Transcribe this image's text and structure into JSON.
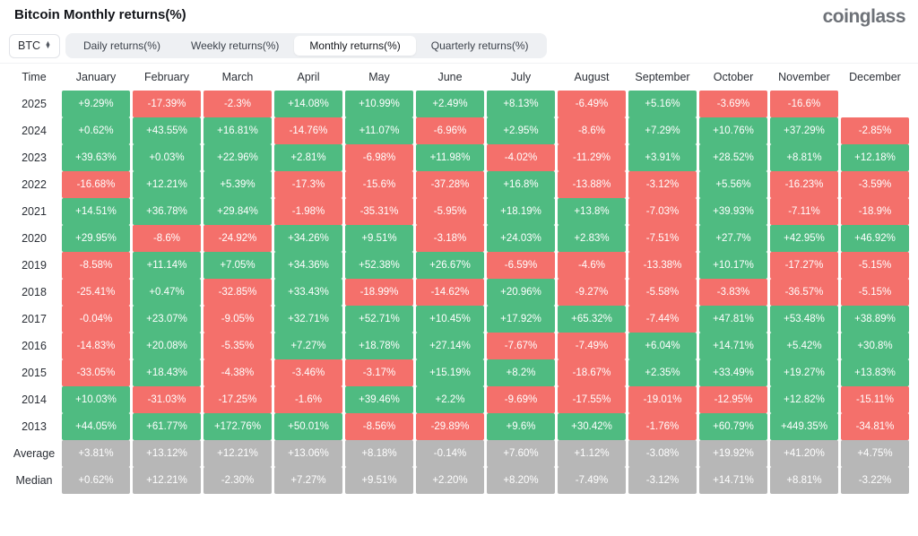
{
  "header": {
    "title": "Bitcoin Monthly returns(%)",
    "logo": "coinglass"
  },
  "controls": {
    "asset_selector": {
      "label": "BTC",
      "icon": "sort-arrows-icon"
    },
    "tabs": [
      {
        "label": "Daily returns(%)",
        "active": false
      },
      {
        "label": "Weekly returns(%)",
        "active": false
      },
      {
        "label": "Monthly returns(%)",
        "active": true
      },
      {
        "label": "Quarterly returns(%)",
        "active": false
      }
    ]
  },
  "colors": {
    "positive": "#4fbb81",
    "negative": "#f4706b",
    "summary": "#b7b7b7"
  },
  "chart_data": {
    "type": "heatmap",
    "columns": [
      "Time",
      "January",
      "February",
      "March",
      "April",
      "May",
      "June",
      "July",
      "August",
      "September",
      "October",
      "November",
      "December"
    ],
    "rows": [
      {
        "label": "2025",
        "type": "year",
        "values": [
          "+9.29%",
          "-17.39%",
          "-2.3%",
          "+14.08%",
          "+10.99%",
          "+2.49%",
          "+8.13%",
          "-6.49%",
          "+5.16%",
          "-3.69%",
          "-16.6%",
          null
        ]
      },
      {
        "label": "2024",
        "type": "year",
        "values": [
          "+0.62%",
          "+43.55%",
          "+16.81%",
          "-14.76%",
          "+11.07%",
          "-6.96%",
          "+2.95%",
          "-8.6%",
          "+7.29%",
          "+10.76%",
          "+37.29%",
          "-2.85%"
        ]
      },
      {
        "label": "2023",
        "type": "year",
        "values": [
          "+39.63%",
          "+0.03%",
          "+22.96%",
          "+2.81%",
          "-6.98%",
          "+11.98%",
          "-4.02%",
          "-11.29%",
          "+3.91%",
          "+28.52%",
          "+8.81%",
          "+12.18%"
        ]
      },
      {
        "label": "2022",
        "type": "year",
        "values": [
          "-16.68%",
          "+12.21%",
          "+5.39%",
          "-17.3%",
          "-15.6%",
          "-37.28%",
          "+16.8%",
          "-13.88%",
          "-3.12%",
          "+5.56%",
          "-16.23%",
          "-3.59%"
        ]
      },
      {
        "label": "2021",
        "type": "year",
        "values": [
          "+14.51%",
          "+36.78%",
          "+29.84%",
          "-1.98%",
          "-35.31%",
          "-5.95%",
          "+18.19%",
          "+13.8%",
          "-7.03%",
          "+39.93%",
          "-7.11%",
          "-18.9%"
        ]
      },
      {
        "label": "2020",
        "type": "year",
        "values": [
          "+29.95%",
          "-8.6%",
          "-24.92%",
          "+34.26%",
          "+9.51%",
          "-3.18%",
          "+24.03%",
          "+2.83%",
          "-7.51%",
          "+27.7%",
          "+42.95%",
          "+46.92%"
        ]
      },
      {
        "label": "2019",
        "type": "year",
        "values": [
          "-8.58%",
          "+11.14%",
          "+7.05%",
          "+34.36%",
          "+52.38%",
          "+26.67%",
          "-6.59%",
          "-4.6%",
          "-13.38%",
          "+10.17%",
          "-17.27%",
          "-5.15%"
        ]
      },
      {
        "label": "2018",
        "type": "year",
        "values": [
          "-25.41%",
          "+0.47%",
          "-32.85%",
          "+33.43%",
          "-18.99%",
          "-14.62%",
          "+20.96%",
          "-9.27%",
          "-5.58%",
          "-3.83%",
          "-36.57%",
          "-5.15%"
        ]
      },
      {
        "label": "2017",
        "type": "year",
        "values": [
          "-0.04%",
          "+23.07%",
          "-9.05%",
          "+32.71%",
          "+52.71%",
          "+10.45%",
          "+17.92%",
          "+65.32%",
          "-7.44%",
          "+47.81%",
          "+53.48%",
          "+38.89%"
        ]
      },
      {
        "label": "2016",
        "type": "year",
        "values": [
          "-14.83%",
          "+20.08%",
          "-5.35%",
          "+7.27%",
          "+18.78%",
          "+27.14%",
          "-7.67%",
          "-7.49%",
          "+6.04%",
          "+14.71%",
          "+5.42%",
          "+30.8%"
        ]
      },
      {
        "label": "2015",
        "type": "year",
        "values": [
          "-33.05%",
          "+18.43%",
          "-4.38%",
          "-3.46%",
          "-3.17%",
          "+15.19%",
          "+8.2%",
          "-18.67%",
          "+2.35%",
          "+33.49%",
          "+19.27%",
          "+13.83%"
        ]
      },
      {
        "label": "2014",
        "type": "year",
        "values": [
          "+10.03%",
          "-31.03%",
          "-17.25%",
          "-1.6%",
          "+39.46%",
          "+2.2%",
          "-9.69%",
          "-17.55%",
          "-19.01%",
          "-12.95%",
          "+12.82%",
          "-15.11%"
        ]
      },
      {
        "label": "2013",
        "type": "year",
        "values": [
          "+44.05%",
          "+61.77%",
          "+172.76%",
          "+50.01%",
          "-8.56%",
          "-29.89%",
          "+9.6%",
          "+30.42%",
          "-1.76%",
          "+60.79%",
          "+449.35%",
          "-34.81%"
        ]
      },
      {
        "label": "Average",
        "type": "summary",
        "values": [
          "+3.81%",
          "+13.12%",
          "+12.21%",
          "+13.06%",
          "+8.18%",
          "-0.14%",
          "+7.60%",
          "+1.12%",
          "-3.08%",
          "+19.92%",
          "+41.20%",
          "+4.75%"
        ]
      },
      {
        "label": "Median",
        "type": "summary",
        "values": [
          "+0.62%",
          "+12.21%",
          "-2.30%",
          "+7.27%",
          "+9.51%",
          "+2.20%",
          "+8.20%",
          "-7.49%",
          "-3.12%",
          "+14.71%",
          "+8.81%",
          "-3.22%"
        ]
      }
    ]
  }
}
